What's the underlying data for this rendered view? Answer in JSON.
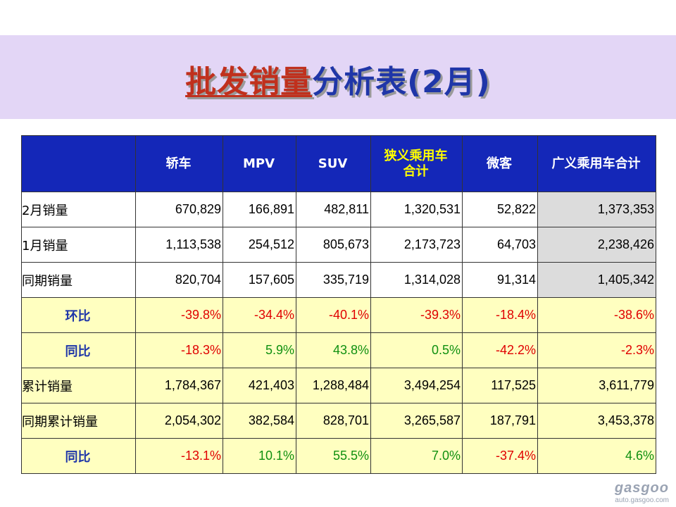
{
  "title": {
    "part1": "批发销量",
    "part2": "分析表(2月)"
  },
  "table": {
    "headers": [
      "",
      "轿车",
      "MPV",
      "SUV",
      "狭义乘用车\n合计",
      "微客",
      "广义乘用车合计"
    ],
    "rows": [
      {
        "label": "2月销量",
        "values": [
          "670,829",
          "166,891",
          "482,811",
          "1,320,531",
          "52,822",
          "1,373,353"
        ]
      },
      {
        "label": "1月销量",
        "values": [
          "1,113,538",
          "254,512",
          "805,673",
          "2,173,723",
          "64,703",
          "2,238,426"
        ]
      },
      {
        "label": "同期销量",
        "values": [
          "820,704",
          "157,605",
          "335,719",
          "1,314,028",
          "91,314",
          "1,405,342"
        ]
      },
      {
        "label": "环比",
        "values": [
          "-39.8%",
          "-34.4%",
          "-40.1%",
          "-39.3%",
          "-18.4%",
          "-38.6%"
        ]
      },
      {
        "label": "同比",
        "values": [
          "-18.3%",
          "5.9%",
          "43.8%",
          "0.5%",
          "-42.2%",
          "-2.3%"
        ]
      },
      {
        "label": "累计销量",
        "values": [
          "1,784,367",
          "421,403",
          "1,288,484",
          "3,494,254",
          "117,525",
          "3,611,779"
        ]
      },
      {
        "label": "同期累计销量",
        "values": [
          "2,054,302",
          "382,584",
          "828,701",
          "3,265,587",
          "187,791",
          "3,453,378"
        ]
      },
      {
        "label": "同比",
        "values": [
          "-13.1%",
          "10.1%",
          "55.5%",
          "7.0%",
          "-37.4%",
          "4.6%"
        ]
      }
    ]
  },
  "logo": {
    "mark": "gasgoo",
    "url": "auto.gasgoo.com"
  },
  "colors": {
    "header_bg": "#1427b8",
    "title_band": "#e3d6f6",
    "highlight_row": "#ffffc0",
    "negative": "#e00000",
    "positive": "#109010"
  }
}
